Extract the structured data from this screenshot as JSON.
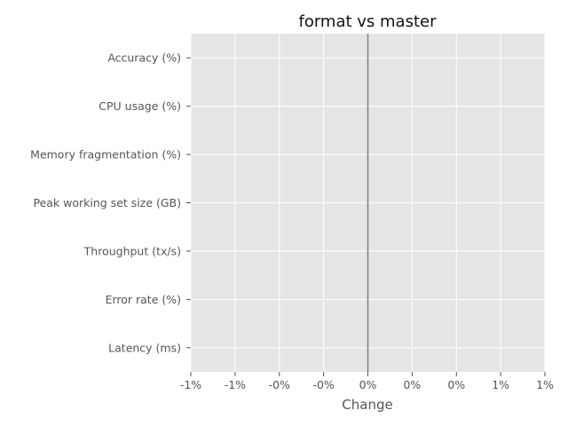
{
  "chart_data": {
    "type": "bar",
    "orientation": "horizontal",
    "title": "format vs master",
    "xlabel": "Change",
    "ylabel": "",
    "categories": [
      "Accuracy (%)",
      "CPU usage (%)",
      "Memory fragmentation (%)",
      "Peak working set size (GB)",
      "Throughput (tx/s)",
      "Error rate (%)",
      "Latency (ms)"
    ],
    "values": [
      0,
      0,
      0,
      0,
      0,
      0,
      0
    ],
    "xlim": [
      -1,
      1
    ],
    "x_ticks": [
      -1,
      -0.75,
      -0.5,
      -0.25,
      0,
      0.25,
      0.5,
      0.75,
      1
    ],
    "x_tick_labels": [
      "-1%",
      "-1%",
      "-0%",
      "-0%",
      "0%",
      "0%",
      "0%",
      "1%",
      "1%"
    ],
    "grid": true,
    "zero_line": true,
    "colors": {
      "plot_background": "#e5e5e5",
      "grid": "#ffffff",
      "zero_line": "#808080",
      "tick_text": "#555555",
      "title_text": "#111111"
    }
  }
}
